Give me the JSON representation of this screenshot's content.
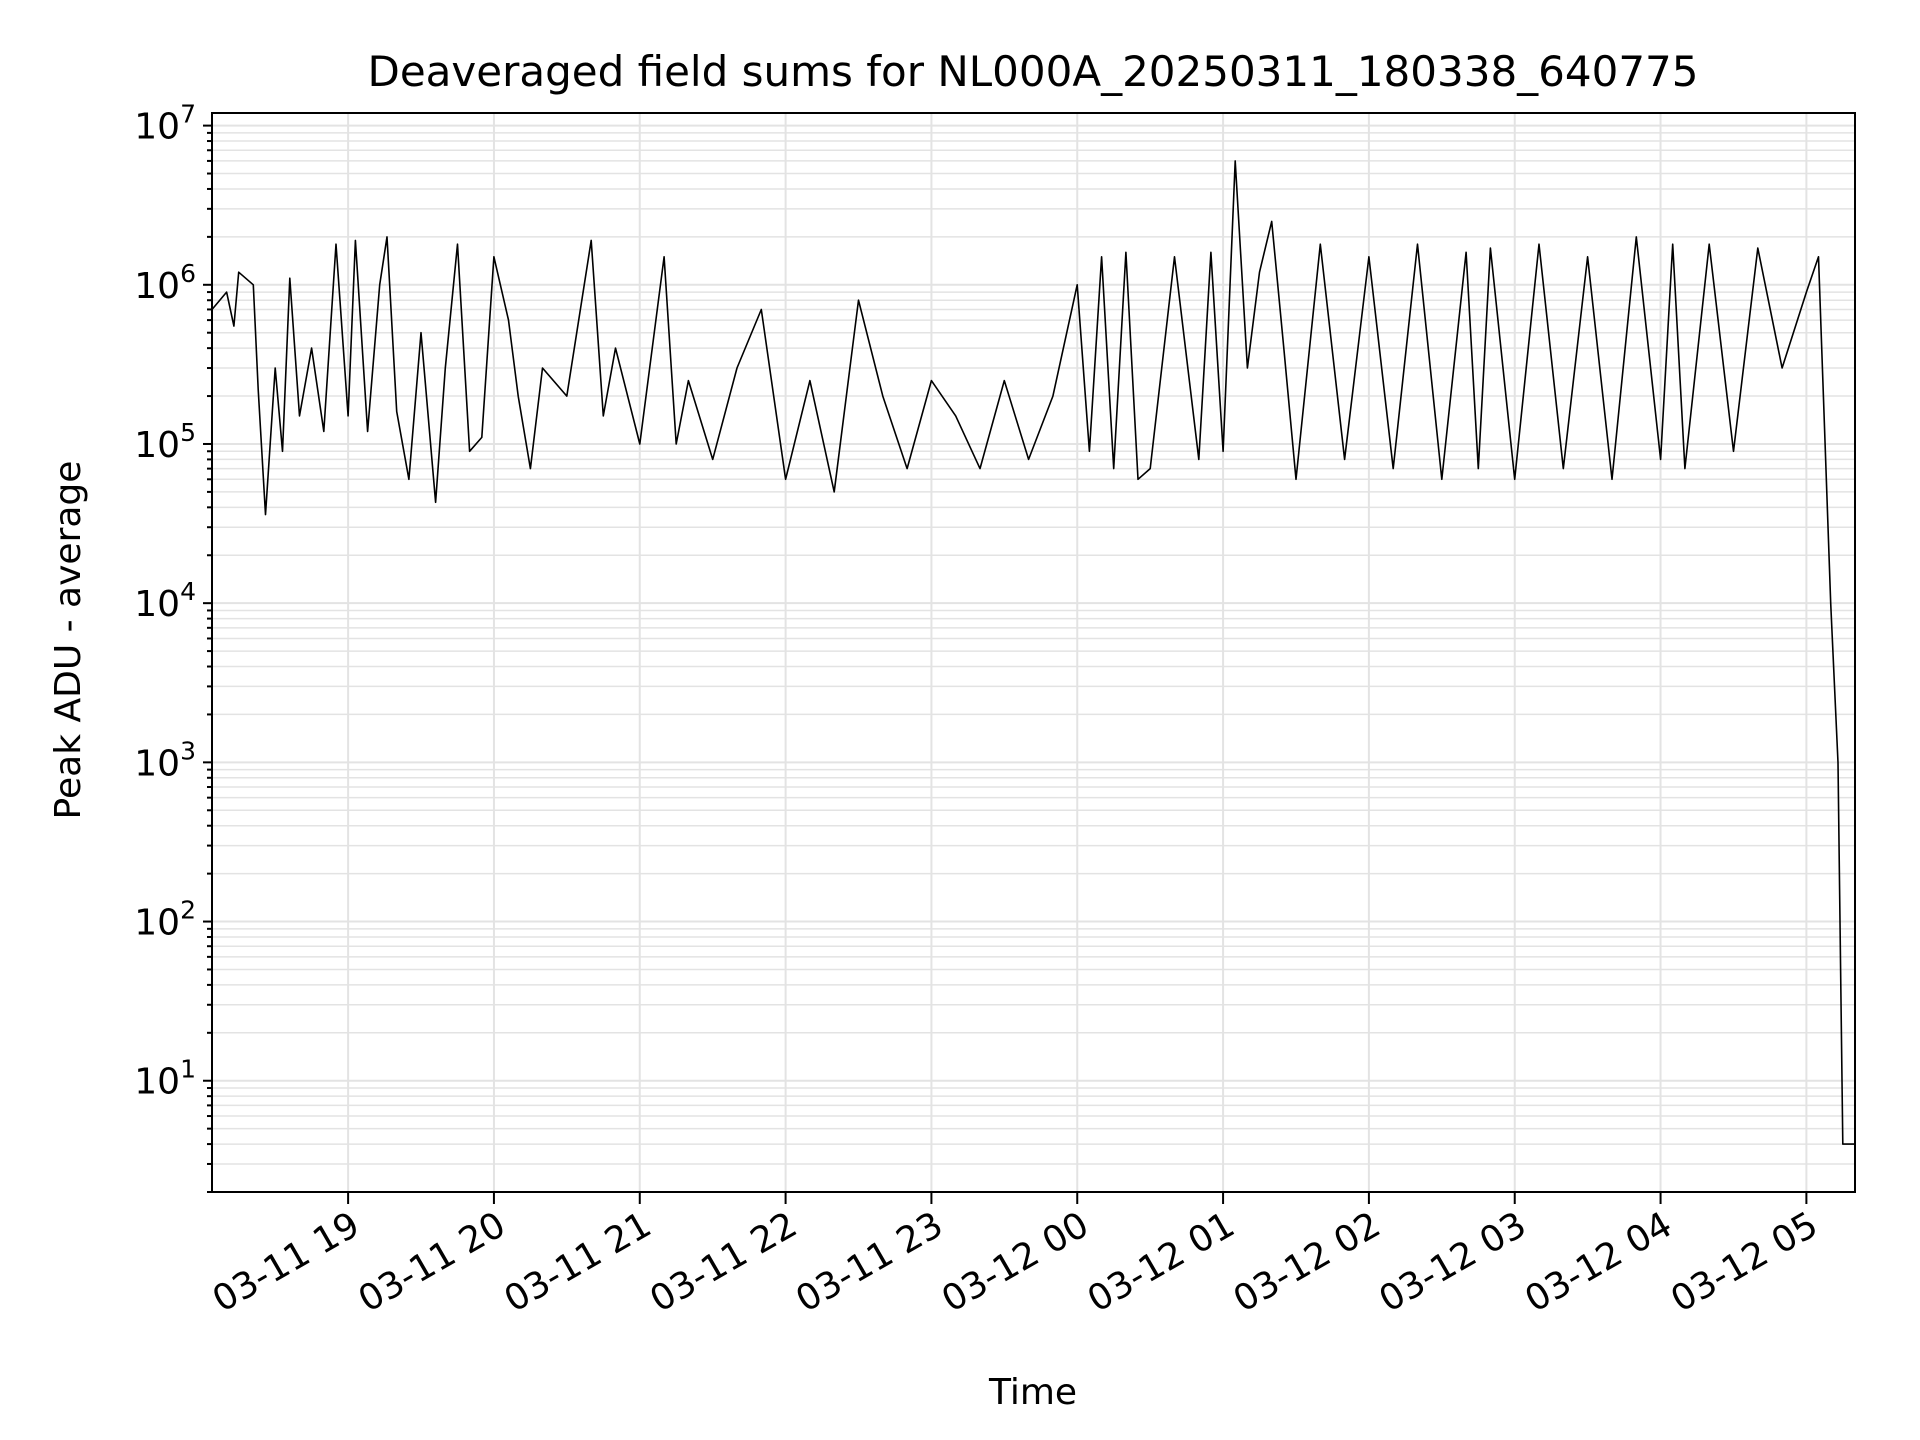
{
  "chart_data": {
    "type": "line",
    "title": "Deaveraged field sums for NL000A_20250311_180338_640775",
    "xlabel": "Time",
    "ylabel": "Peak ADU - average",
    "yscale": "log",
    "xlim": [
      "2025-03-11 18:04",
      "2025-03-12 05:20"
    ],
    "ylim": [
      2,
      12000000
    ],
    "grid": true,
    "line_color": "#000000",
    "grid_color": "#e3e3e3",
    "x_ticks": [
      {
        "value": "2025-03-11 19:00",
        "label": "03-11 19"
      },
      {
        "value": "2025-03-11 20:00",
        "label": "03-11 20"
      },
      {
        "value": "2025-03-11 21:00",
        "label": "03-11 21"
      },
      {
        "value": "2025-03-11 22:00",
        "label": "03-11 22"
      },
      {
        "value": "2025-03-11 23:00",
        "label": "03-11 23"
      },
      {
        "value": "2025-03-12 00:00",
        "label": "03-12 00"
      },
      {
        "value": "2025-03-12 01:00",
        "label": "03-12 01"
      },
      {
        "value": "2025-03-12 02:00",
        "label": "03-12 02"
      },
      {
        "value": "2025-03-12 03:00",
        "label": "03-12 03"
      },
      {
        "value": "2025-03-12 04:00",
        "label": "03-12 04"
      },
      {
        "value": "2025-03-12 05:00",
        "label": "03-12 05"
      }
    ],
    "y_ticks": [
      {
        "value": 10,
        "base": "10",
        "exp": "1"
      },
      {
        "value": 100,
        "base": "10",
        "exp": "2"
      },
      {
        "value": 1000,
        "base": "10",
        "exp": "3"
      },
      {
        "value": 10000,
        "base": "10",
        "exp": "4"
      },
      {
        "value": 100000,
        "base": "10",
        "exp": "5"
      },
      {
        "value": 1000000,
        "base": "10",
        "exp": "6"
      },
      {
        "value": 10000000,
        "base": "10",
        "exp": "7"
      }
    ],
    "series": [
      {
        "x": [
          "2025-03-11 18:04",
          "2025-03-11 18:10",
          "2025-03-11 18:13",
          "2025-03-11 18:15",
          "2025-03-11 18:21",
          "2025-03-11 18:23",
          "2025-03-11 18:26",
          "2025-03-11 18:30",
          "2025-03-11 18:33",
          "2025-03-11 18:36",
          "2025-03-11 18:40",
          "2025-03-11 18:45",
          "2025-03-11 18:50",
          "2025-03-11 18:55",
          "2025-03-11 19:00",
          "2025-03-11 19:03",
          "2025-03-11 19:08",
          "2025-03-11 19:13",
          "2025-03-11 19:16",
          "2025-03-11 19:20",
          "2025-03-11 19:25",
          "2025-03-11 19:30",
          "2025-03-11 19:36",
          "2025-03-11 19:40",
          "2025-03-11 19:45",
          "2025-03-11 19:50",
          "2025-03-11 19:55",
          "2025-03-11 20:00",
          "2025-03-11 20:06",
          "2025-03-11 20:10",
          "2025-03-11 20:15",
          "2025-03-11 20:20",
          "2025-03-11 20:30",
          "2025-03-11 20:40",
          "2025-03-11 20:45",
          "2025-03-11 20:50",
          "2025-03-11 21:00",
          "2025-03-11 21:10",
          "2025-03-11 21:15",
          "2025-03-11 21:20",
          "2025-03-11 21:30",
          "2025-03-11 21:40",
          "2025-03-11 21:50",
          "2025-03-11 22:00",
          "2025-03-11 22:10",
          "2025-03-11 22:20",
          "2025-03-11 22:30",
          "2025-03-11 22:40",
          "2025-03-11 22:50",
          "2025-03-11 23:00",
          "2025-03-11 23:10",
          "2025-03-11 23:20",
          "2025-03-11 23:30",
          "2025-03-11 23:40",
          "2025-03-11 23:50",
          "2025-03-12 00:00",
          "2025-03-12 00:05",
          "2025-03-12 00:10",
          "2025-03-12 00:15",
          "2025-03-12 00:20",
          "2025-03-12 00:25",
          "2025-03-12 00:30",
          "2025-03-12 00:40",
          "2025-03-12 00:50",
          "2025-03-12 00:55",
          "2025-03-12 01:00",
          "2025-03-12 01:05",
          "2025-03-12 01:10",
          "2025-03-12 01:15",
          "2025-03-12 01:20",
          "2025-03-12 01:25",
          "2025-03-12 01:30",
          "2025-03-12 01:40",
          "2025-03-12 01:50",
          "2025-03-12 02:00",
          "2025-03-12 02:10",
          "2025-03-12 02:20",
          "2025-03-12 02:30",
          "2025-03-12 02:40",
          "2025-03-12 02:45",
          "2025-03-12 02:50",
          "2025-03-12 03:00",
          "2025-03-12 03:10",
          "2025-03-12 03:20",
          "2025-03-12 03:30",
          "2025-03-12 03:40",
          "2025-03-12 03:50",
          "2025-03-12 04:00",
          "2025-03-12 04:05",
          "2025-03-12 04:10",
          "2025-03-12 04:20",
          "2025-03-12 04:30",
          "2025-03-12 04:40",
          "2025-03-12 04:50",
          "2025-03-12 05:00",
          "2025-03-12 05:05",
          "2025-03-12 05:10",
          "2025-03-12 05:13",
          "2025-03-12 05:15",
          "2025-03-12 05:17",
          "2025-03-12 05:18",
          "2025-03-12 05:20"
        ],
        "values": [
          700000,
          900000,
          550000,
          1200000,
          1000000,
          220000,
          36000,
          300000,
          90000,
          1100000,
          150000,
          400000,
          120000,
          1800000,
          150000,
          1900000,
          120000,
          1000000,
          2000000,
          160000,
          60000,
          500000,
          43000,
          300000,
          1800000,
          90000,
          110000,
          1500000,
          600000,
          200000,
          70000,
          300000,
          200000,
          1900000,
          150000,
          400000,
          100000,
          1500000,
          100000,
          250000,
          80000,
          300000,
          700000,
          60000,
          250000,
          50000,
          800000,
          200000,
          70000,
          250000,
          150000,
          70000,
          250000,
          80000,
          200000,
          1000000,
          90000,
          1500000,
          70000,
          1600000,
          60000,
          70000,
          1500000,
          80000,
          1600000,
          90000,
          6000000,
          300000,
          1200000,
          2500000,
          400000,
          60000,
          1800000,
          80000,
          1500000,
          70000,
          1800000,
          60000,
          1600000,
          70000,
          1700000,
          60000,
          1800000,
          70000,
          1500000,
          60000,
          2000000,
          80000,
          1800000,
          70000,
          1800000,
          90000,
          1700000,
          300000,
          900000,
          1500000,
          10000,
          1000,
          4,
          4,
          4,
          4
        ]
      }
    ]
  }
}
